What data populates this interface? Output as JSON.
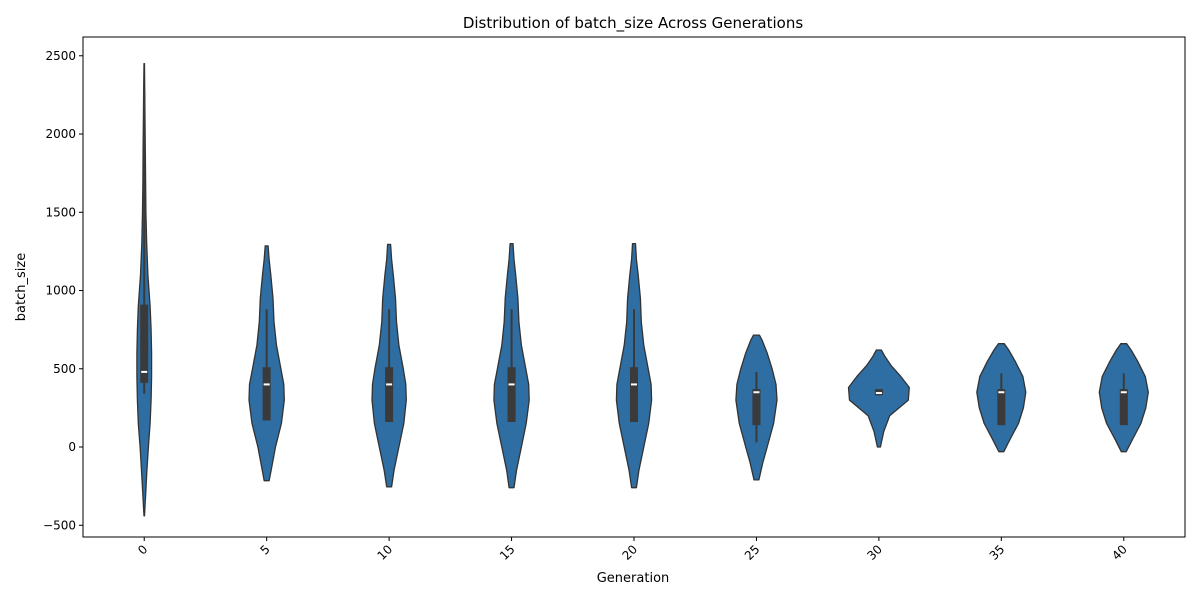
{
  "chart_data": {
    "type": "violin",
    "title": "Distribution of batch_size Across Generations",
    "xlabel": "Generation",
    "ylabel": "batch_size",
    "ylim": [
      -575,
      2620
    ],
    "yticks": [
      -500,
      0,
      500,
      1000,
      1500,
      2000,
      2500
    ],
    "ytick_labels": [
      "−500",
      "0",
      "500",
      "1000",
      "1500",
      "2000",
      "2500"
    ],
    "categories": [
      "0",
      "5",
      "10",
      "15",
      "20",
      "25",
      "30",
      "35",
      "40"
    ],
    "grid": false,
    "colors": {
      "fill": "#2e6ea3",
      "edge": "#333333",
      "box": "#3a3a3a",
      "median": "#ffffff"
    },
    "violins": [
      {
        "category": "0",
        "profile": [
          [
            -440,
            0.005
          ],
          [
            -300,
            0.03
          ],
          [
            -150,
            0.055
          ],
          [
            0,
            0.085
          ],
          [
            150,
            0.12
          ],
          [
            300,
            0.14
          ],
          [
            450,
            0.15
          ],
          [
            600,
            0.15
          ],
          [
            750,
            0.14
          ],
          [
            900,
            0.12
          ],
          [
            1100,
            0.075
          ],
          [
            1300,
            0.05
          ],
          [
            1500,
            0.035
          ],
          [
            1700,
            0.028
          ],
          [
            1900,
            0.022
          ],
          [
            2100,
            0.016
          ],
          [
            2300,
            0.01
          ],
          [
            2450,
            0.005
          ]
        ],
        "whisker": [
          340,
          2280
        ],
        "q1": 410,
        "q3": 910,
        "median": 480
      },
      {
        "category": "5",
        "profile": [
          [
            -215,
            0.05
          ],
          [
            -150,
            0.09
          ],
          [
            0,
            0.18
          ],
          [
            150,
            0.3
          ],
          [
            300,
            0.36
          ],
          [
            400,
            0.35
          ],
          [
            500,
            0.29
          ],
          [
            650,
            0.2
          ],
          [
            800,
            0.15
          ],
          [
            950,
            0.13
          ],
          [
            1100,
            0.085
          ],
          [
            1200,
            0.05
          ],
          [
            1285,
            0.03
          ]
        ],
        "whisker": [
          170,
          880
        ],
        "q1": 170,
        "q3": 510,
        "median": 400
      },
      {
        "category": "10",
        "profile": [
          [
            -255,
            0.05
          ],
          [
            -150,
            0.1
          ],
          [
            0,
            0.2
          ],
          [
            150,
            0.3
          ],
          [
            300,
            0.35
          ],
          [
            400,
            0.34
          ],
          [
            500,
            0.29
          ],
          [
            650,
            0.2
          ],
          [
            800,
            0.15
          ],
          [
            950,
            0.13
          ],
          [
            1100,
            0.085
          ],
          [
            1200,
            0.05
          ],
          [
            1295,
            0.03
          ]
        ],
        "whisker": [
          160,
          880
        ],
        "q1": 160,
        "q3": 510,
        "median": 400
      },
      {
        "category": "15",
        "profile": [
          [
            -260,
            0.05
          ],
          [
            -150,
            0.1
          ],
          [
            0,
            0.2
          ],
          [
            150,
            0.3
          ],
          [
            300,
            0.36
          ],
          [
            400,
            0.35
          ],
          [
            500,
            0.29
          ],
          [
            650,
            0.2
          ],
          [
            800,
            0.15
          ],
          [
            950,
            0.13
          ],
          [
            1100,
            0.085
          ],
          [
            1200,
            0.05
          ],
          [
            1300,
            0.03
          ]
        ],
        "whisker": [
          160,
          880
        ],
        "q1": 160,
        "q3": 510,
        "median": 400
      },
      {
        "category": "20",
        "profile": [
          [
            -260,
            0.05
          ],
          [
            -150,
            0.1
          ],
          [
            0,
            0.2
          ],
          [
            150,
            0.3
          ],
          [
            300,
            0.36
          ],
          [
            400,
            0.35
          ],
          [
            500,
            0.29
          ],
          [
            650,
            0.2
          ],
          [
            800,
            0.15
          ],
          [
            950,
            0.13
          ],
          [
            1100,
            0.085
          ],
          [
            1200,
            0.05
          ],
          [
            1300,
            0.03
          ]
        ],
        "whisker": [
          160,
          880
        ],
        "q1": 160,
        "q3": 510,
        "median": 400
      },
      {
        "category": "25",
        "profile": [
          [
            -210,
            0.05
          ],
          [
            -100,
            0.13
          ],
          [
            0,
            0.22
          ],
          [
            150,
            0.35
          ],
          [
            300,
            0.42
          ],
          [
            400,
            0.4
          ],
          [
            500,
            0.32
          ],
          [
            600,
            0.22
          ],
          [
            680,
            0.12
          ],
          [
            715,
            0.06
          ]
        ],
        "whisker": [
          30,
          480
        ],
        "q1": 140,
        "q3": 370,
        "median": 350
      },
      {
        "category": "30",
        "profile": [
          [
            0,
            0.03
          ],
          [
            100,
            0.1
          ],
          [
            200,
            0.22
          ],
          [
            300,
            0.6
          ],
          [
            380,
            0.62
          ],
          [
            450,
            0.45
          ],
          [
            520,
            0.25
          ],
          [
            580,
            0.12
          ],
          [
            620,
            0.05
          ]
        ],
        "whisker": [
          330,
          370
        ],
        "q1": 330,
        "q3": 370,
        "median": 345
      },
      {
        "category": "35",
        "profile": [
          [
            -30,
            0.05
          ],
          [
            50,
            0.18
          ],
          [
            150,
            0.35
          ],
          [
            250,
            0.45
          ],
          [
            350,
            0.5
          ],
          [
            450,
            0.44
          ],
          [
            550,
            0.28
          ],
          [
            620,
            0.15
          ],
          [
            660,
            0.06
          ]
        ],
        "whisker": [
          140,
          470
        ],
        "q1": 140,
        "q3": 370,
        "median": 350
      },
      {
        "category": "40",
        "profile": [
          [
            -30,
            0.05
          ],
          [
            50,
            0.18
          ],
          [
            150,
            0.35
          ],
          [
            250,
            0.45
          ],
          [
            350,
            0.5
          ],
          [
            450,
            0.44
          ],
          [
            550,
            0.28
          ],
          [
            620,
            0.15
          ],
          [
            660,
            0.06
          ]
        ],
        "whisker": [
          140,
          470
        ],
        "q1": 140,
        "q3": 370,
        "median": 350
      }
    ]
  }
}
